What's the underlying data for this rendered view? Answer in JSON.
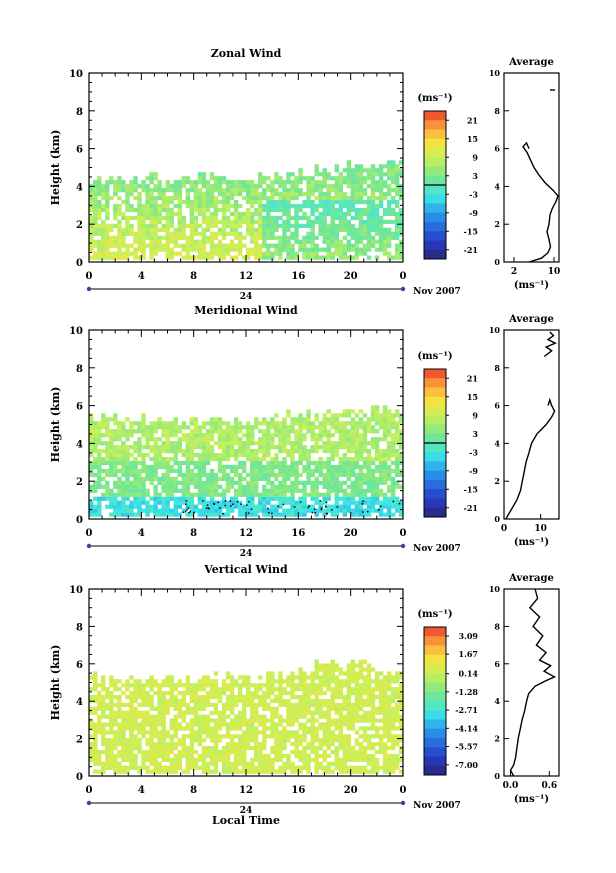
{
  "chart_data": [
    {
      "type": "heatmap",
      "title": "Zonal Wind",
      "ylabel": "Height (km)",
      "xlabel": "",
      "xlim": [
        0,
        24
      ],
      "ylim": [
        0,
        10
      ],
      "x_ticks": [
        "0",
        "4",
        "8",
        "12",
        "16",
        "20",
        "0"
      ],
      "y_ticks": [
        "0",
        "2",
        "4",
        "6",
        "8",
        "10"
      ],
      "date_label": "24",
      "month_label": "Nov 2007",
      "colorbar": {
        "unit": "(ms⁻¹)",
        "min": -24,
        "max": 24,
        "zero_line": true,
        "ticks": [
          "21",
          "15",
          "9",
          "3",
          "-3",
          "-9",
          "-15",
          "-21"
        ],
        "tick_values": [
          21,
          15,
          9,
          3,
          -3,
          -9,
          -15,
          -21
        ]
      },
      "echo_top_km": [
        4.3,
        4.1,
        4.4,
        4.5,
        4.4,
        4.3,
        4.5,
        4.6,
        4.8,
        5.0,
        5.2,
        5.3
      ],
      "profile": {
        "title": "Average",
        "xlabel": "(ms⁻¹)",
        "xlim": [
          0,
          11
        ],
        "x_ticks": [
          "2",
          "10"
        ],
        "x_tick_values": [
          2,
          10
        ],
        "y_ticks": [
          "0",
          "2",
          "4",
          "6",
          "8",
          "10"
        ],
        "heights": [
          0.0,
          0.2,
          0.5,
          0.8,
          1.2,
          1.6,
          2.0,
          2.5,
          2.8,
          3.2,
          3.5,
          3.8,
          4.2,
          4.6,
          5.0,
          5.4,
          5.8,
          6.1,
          6.3,
          6.0
        ],
        "values": [
          5.0,
          7.5,
          8.8,
          9.3,
          9.0,
          8.6,
          9.0,
          9.2,
          9.6,
          10.4,
          10.8,
          9.8,
          8.2,
          7.0,
          6.0,
          5.3,
          4.6,
          3.8,
          4.5,
          5.0
        ],
        "upper_heights": [
          9.1,
          9.1
        ],
        "upper_values": [
          9.2,
          10.2
        ]
      }
    },
    {
      "type": "heatmap",
      "title": "Meridional Wind",
      "ylabel": "Height (km)",
      "xlabel": "",
      "xlim": [
        0,
        24
      ],
      "ylim": [
        0,
        10
      ],
      "x_ticks": [
        "0",
        "4",
        "8",
        "12",
        "16",
        "20",
        "0"
      ],
      "y_ticks": [
        "0",
        "2",
        "4",
        "6",
        "8",
        "10"
      ],
      "date_label": "24",
      "month_label": "Nov 2007",
      "colorbar": {
        "unit": "(ms⁻¹)",
        "min": -24,
        "max": 24,
        "zero_line": true,
        "ticks": [
          "21",
          "15",
          "9",
          "3",
          "-3",
          "-9",
          "-15",
          "-21"
        ],
        "tick_values": [
          21,
          15,
          9,
          3,
          -3,
          -9,
          -15,
          -21
        ]
      },
      "echo_top_km": [
        5.4,
        5.3,
        5.1,
        5.0,
        5.2,
        5.1,
        5.3,
        5.4,
        5.5,
        5.6,
        5.8,
        5.6
      ],
      "profile": {
        "title": "Average",
        "xlabel": "(ms⁻¹)",
        "xlim": [
          0,
          15
        ],
        "x_ticks": [
          "0",
          "10"
        ],
        "x_tick_values": [
          0,
          10
        ],
        "y_ticks": [
          "0",
          "2",
          "4",
          "6",
          "8",
          "10"
        ],
        "heights": [
          0.0,
          0.5,
          1.0,
          1.5,
          2.0,
          2.5,
          3.0,
          3.5,
          4.0,
          4.5,
          5.0,
          5.4,
          5.7,
          6.0,
          6.3,
          6.0
        ],
        "values": [
          0.5,
          2.0,
          3.5,
          4.5,
          5.0,
          5.5,
          6.0,
          6.8,
          7.5,
          9.0,
          11.5,
          13.0,
          13.8,
          13.0,
          12.5,
          12.0
        ],
        "upper_heights": [
          8.6,
          8.9,
          9.1,
          9.3,
          9.5,
          9.7,
          9.9
        ],
        "upper_values": [
          11.0,
          13.0,
          11.5,
          14.0,
          12.0,
          13.5,
          12.5
        ]
      }
    },
    {
      "type": "heatmap",
      "title": "Vertical Wind",
      "ylabel": "Height (km)",
      "xlabel": "Local Time",
      "xlim": [
        0,
        24
      ],
      "ylim": [
        0,
        10
      ],
      "x_ticks": [
        "0",
        "4",
        "8",
        "12",
        "16",
        "20",
        "0"
      ],
      "y_ticks": [
        "0",
        "2",
        "4",
        "6",
        "8",
        "10"
      ],
      "date_label": "24",
      "month_label": "Nov 2007",
      "colorbar": {
        "unit": "(ms⁻¹)",
        "min": -7.8,
        "max": 3.8,
        "zero_line": false,
        "ticks": [
          "3.09",
          "1.67",
          "0.14",
          "-1.28",
          "-2.71",
          "-4.14",
          "-5.57",
          "-7.00"
        ],
        "tick_values": [
          3.09,
          1.67,
          0.14,
          -1.28,
          -2.71,
          -4.14,
          -5.57,
          -7.0
        ]
      },
      "echo_top_km": [
        5.3,
        5.2,
        5.1,
        5.0,
        5.2,
        5.1,
        5.3,
        5.5,
        6.0,
        5.8,
        5.6,
        5.4
      ],
      "profile": {
        "title": "Average",
        "xlabel": "(ms⁻¹)",
        "xlim": [
          -0.1,
          0.75
        ],
        "x_ticks": [
          "0.0",
          "0.6"
        ],
        "x_tick_values": [
          0.0,
          0.6
        ],
        "y_ticks": [
          "0",
          "2",
          "4",
          "6",
          "8",
          "10"
        ],
        "heights": [
          0.0,
          0.3,
          0.6,
          1.0,
          1.5,
          2.0,
          2.5,
          3.0,
          3.5,
          4.0,
          4.4,
          4.8,
          5.1,
          5.3,
          5.6,
          5.9,
          6.2,
          6.6,
          7.0,
          7.5,
          8.0,
          8.5,
          9.0,
          9.5,
          10.0
        ],
        "values": [
          0.05,
          0.0,
          0.05,
          0.08,
          0.1,
          0.12,
          0.15,
          0.18,
          0.22,
          0.25,
          0.28,
          0.38,
          0.55,
          0.68,
          0.52,
          0.62,
          0.45,
          0.55,
          0.4,
          0.5,
          0.35,
          0.45,
          0.3,
          0.42,
          0.38
        ]
      }
    }
  ]
}
